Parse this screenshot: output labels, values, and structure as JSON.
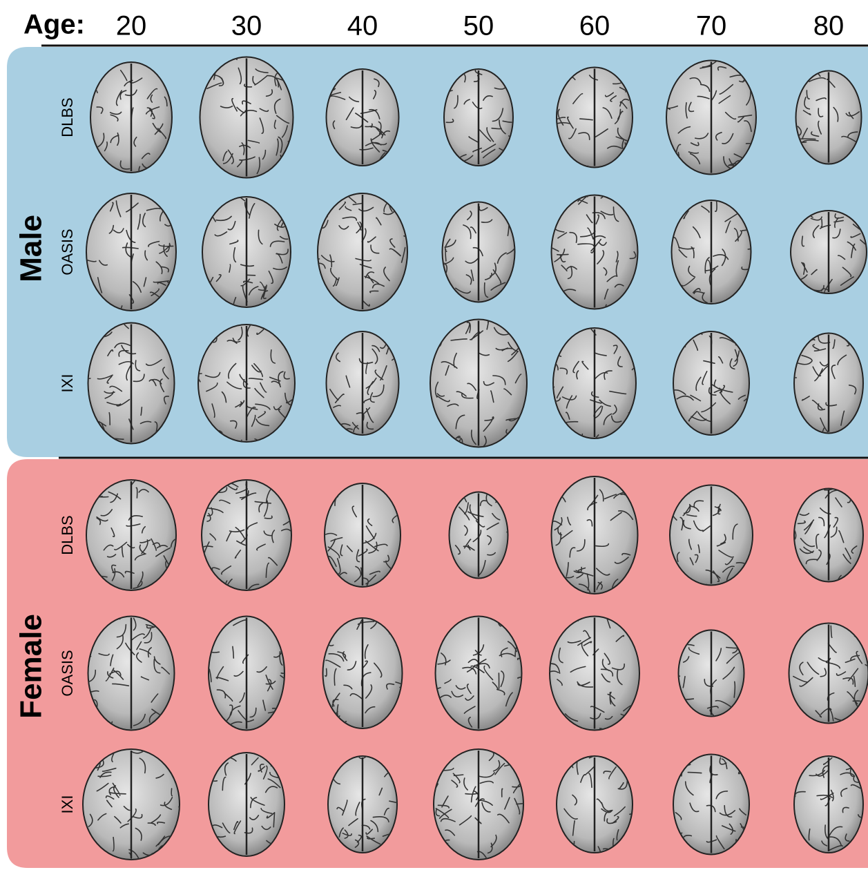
{
  "header": {
    "age_label": "Age:",
    "ages": [
      20,
      30,
      40,
      50,
      60,
      70,
      80
    ]
  },
  "groups": [
    {
      "label": "Male",
      "datasets": [
        "DLBS",
        "OASIS",
        "IXI"
      ]
    },
    {
      "label": "Female",
      "datasets": [
        "DLBS",
        "OASIS",
        "IXI"
      ]
    }
  ]
}
